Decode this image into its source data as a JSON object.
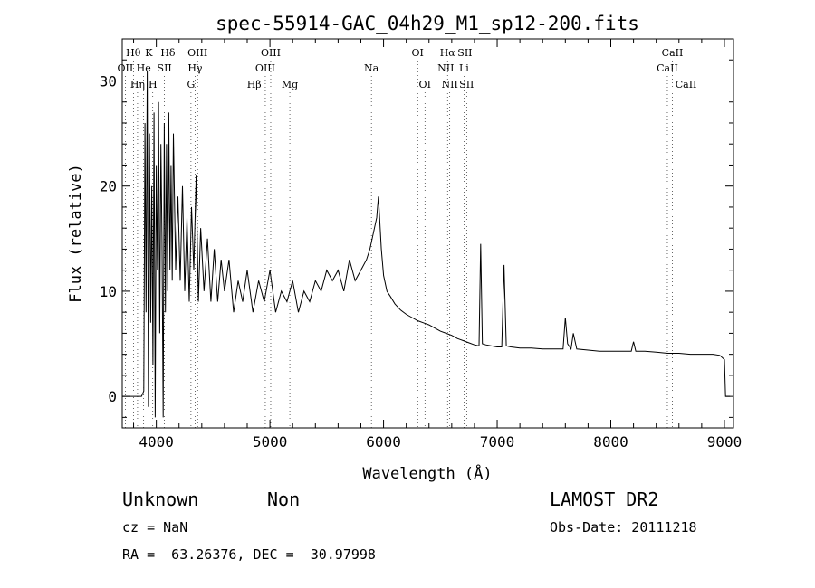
{
  "chart_data": {
    "type": "line",
    "title": "spec-55914-GAC_04h29_M1_sp12-200.fits",
    "xlabel": "Wavelength (Å)",
    "ylabel": "Flux (relative)",
    "xlim": [
      3700,
      9080
    ],
    "ylim": [
      -3,
      34
    ],
    "xticks": [
      4000,
      5000,
      6000,
      7000,
      8000,
      9000
    ],
    "yticks": [
      0,
      10,
      20,
      30
    ],
    "series": [
      {
        "x": [
          3700,
          3840,
          3870,
          3890,
          3900,
          3910,
          3920,
          3930,
          3940,
          3950,
          3960,
          3970,
          3980,
          3990,
          4000,
          4010,
          4020,
          4030,
          4040,
          4050,
          4060,
          4070,
          4080,
          4090,
          4100,
          4110,
          4120,
          4130,
          4140,
          4150,
          4170,
          4190,
          4210,
          4230,
          4250,
          4270,
          4290,
          4310,
          4330,
          4350,
          4370,
          4390,
          4420,
          4450,
          4480,
          4510,
          4540,
          4570,
          4600,
          4640,
          4680,
          4720,
          4760,
          4800,
          4850,
          4900,
          4950,
          5000,
          5050,
          5100,
          5150,
          5200,
          5250,
          5300,
          5350,
          5400,
          5450,
          5500,
          5550,
          5600,
          5650,
          5700,
          5750,
          5800,
          5850,
          5880,
          5900,
          5920,
          5940,
          5955,
          5965,
          5980,
          6000,
          6030,
          6060,
          6100,
          6150,
          6200,
          6250,
          6300,
          6350,
          6400,
          6450,
          6500,
          6550,
          6600,
          6650,
          6700,
          6750,
          6800,
          6840,
          6855,
          6870,
          6900,
          6950,
          7000,
          7040,
          7060,
          7080,
          7120,
          7200,
          7300,
          7400,
          7500,
          7580,
          7600,
          7620,
          7650,
          7670,
          7700,
          7800,
          7900,
          8000,
          8100,
          8180,
          8200,
          8220,
          8300,
          8400,
          8500,
          8600,
          8700,
          8800,
          8900,
          8960,
          9000,
          9010,
          9030,
          9050
        ],
        "values": [
          0,
          0,
          0,
          0.5,
          26,
          8,
          31,
          -1,
          25,
          7,
          20,
          3,
          27,
          -2,
          22,
          12,
          28,
          6,
          24,
          15,
          -2,
          26,
          8,
          24,
          10,
          27,
          12,
          22,
          11,
          25,
          12,
          19,
          11,
          20,
          10,
          17,
          9,
          18,
          12,
          21,
          9,
          16,
          10,
          15,
          9,
          14,
          9,
          13,
          10,
          13,
          8,
          11,
          9,
          12,
          8,
          11,
          9,
          12,
          8,
          10,
          9,
          11,
          8,
          10,
          9,
          11,
          10,
          12,
          11,
          12,
          10,
          13,
          11,
          12,
          13,
          14,
          15,
          16,
          17,
          19,
          17,
          14,
          11.5,
          10,
          9.5,
          8.8,
          8.2,
          7.8,
          7.5,
          7.2,
          7.0,
          6.8,
          6.5,
          6.2,
          6.0,
          5.8,
          5.5,
          5.3,
          5.1,
          4.9,
          4.8,
          14.5,
          5.0,
          4.9,
          4.8,
          4.7,
          4.7,
          12.5,
          4.8,
          4.7,
          4.6,
          4.6,
          4.5,
          4.5,
          4.5,
          7.5,
          5.0,
          4.5,
          6.0,
          4.5,
          4.4,
          4.3,
          4.3,
          4.3,
          4.3,
          5.2,
          4.3,
          4.3,
          4.2,
          4.1,
          4.1,
          4.0,
          4.0,
          4.0,
          3.9,
          3.5,
          0,
          0,
          0
        ]
      }
    ],
    "line_markers": [
      {
        "label": "Hθ",
        "x": 3798,
        "row": 1
      },
      {
        "label": "K",
        "x": 3934,
        "row": 1
      },
      {
        "label": "Hδ",
        "x": 4102,
        "row": 1
      },
      {
        "label": "OIII",
        "x": 4363,
        "row": 1
      },
      {
        "label": "OIII",
        "x": 5007,
        "row": 1
      },
      {
        "label": "OI",
        "x": 6300,
        "row": 1
      },
      {
        "label": "Hα",
        "x": 6563,
        "row": 1
      },
      {
        "label": "SII",
        "x": 6716,
        "row": 1
      },
      {
        "label": "CaII",
        "x": 8542,
        "row": 1
      },
      {
        "label": "OII",
        "x": 3727,
        "row": 2
      },
      {
        "label": "He",
        "x": 3889,
        "row": 2
      },
      {
        "label": "SII",
        "x": 4072,
        "row": 2
      },
      {
        "label": "Hγ",
        "x": 4341,
        "row": 2
      },
      {
        "label": "OIII",
        "x": 4959,
        "row": 2
      },
      {
        "label": "Na",
        "x": 5893,
        "row": 2
      },
      {
        "label": "NII",
        "x": 6548,
        "row": 2
      },
      {
        "label": "Li",
        "x": 6708,
        "row": 2
      },
      {
        "label": "CaII",
        "x": 8498,
        "row": 2
      },
      {
        "label": "Hη",
        "x": 3835,
        "row": 3
      },
      {
        "label": "H",
        "x": 3969,
        "row": 3
      },
      {
        "label": "G",
        "x": 4305,
        "row": 3
      },
      {
        "label": "Hβ",
        "x": 4861,
        "row": 3
      },
      {
        "label": "Mg",
        "x": 5175,
        "row": 3
      },
      {
        "label": "OI",
        "x": 6364,
        "row": 3
      },
      {
        "label": "NII",
        "x": 6583,
        "row": 3
      },
      {
        "label": "SII",
        "x": 6731,
        "row": 3
      },
      {
        "label": "CaII",
        "x": 8662,
        "row": 3
      }
    ]
  },
  "info": {
    "classification": "Unknown",
    "subclass": "Non",
    "survey": "LAMOST DR2",
    "cz": "cz = NaN",
    "obs_date": "Obs-Date: 20111218",
    "coords": "RA =  63.26376, DEC =  30.97998"
  }
}
